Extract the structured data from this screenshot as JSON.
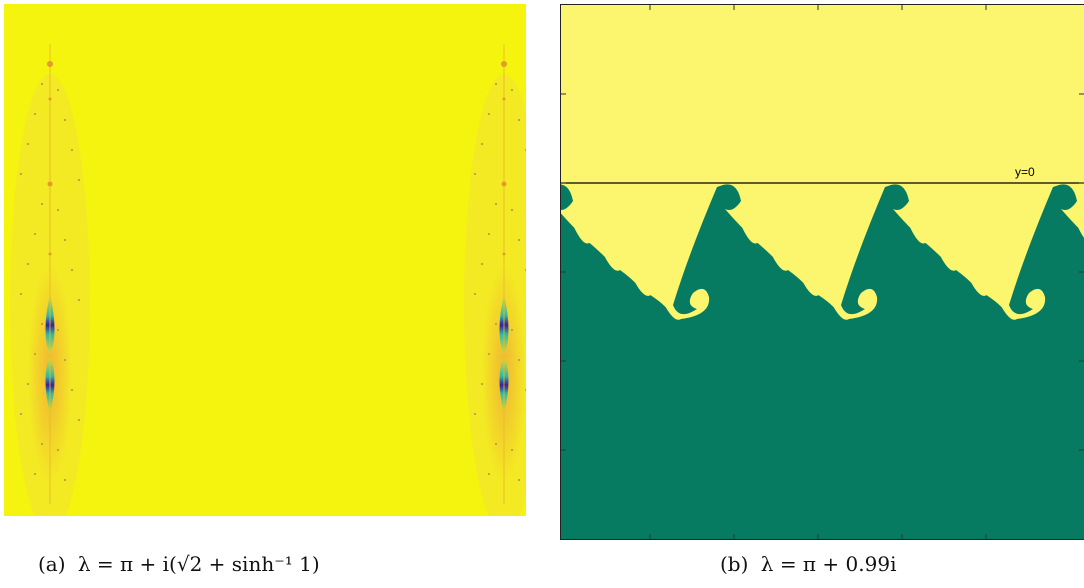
{
  "panel_a": {
    "caption_tag": "(a)",
    "caption_formula": "λ = π + i(√2 + sinh⁻¹ 1)",
    "colors": {
      "background": "#F5F40F",
      "orange": "#F2B234",
      "teal": "#2FB8A6",
      "blue": "#1A6AD6",
      "deep": "#3A1E9A"
    }
  },
  "panel_b": {
    "caption_tag": "(b)",
    "caption_formula": "λ = π + 0.99i",
    "line_label": "y=0",
    "colors": {
      "upper": "#FCF56E",
      "lower": "#077B62",
      "line": "#000000"
    }
  }
}
